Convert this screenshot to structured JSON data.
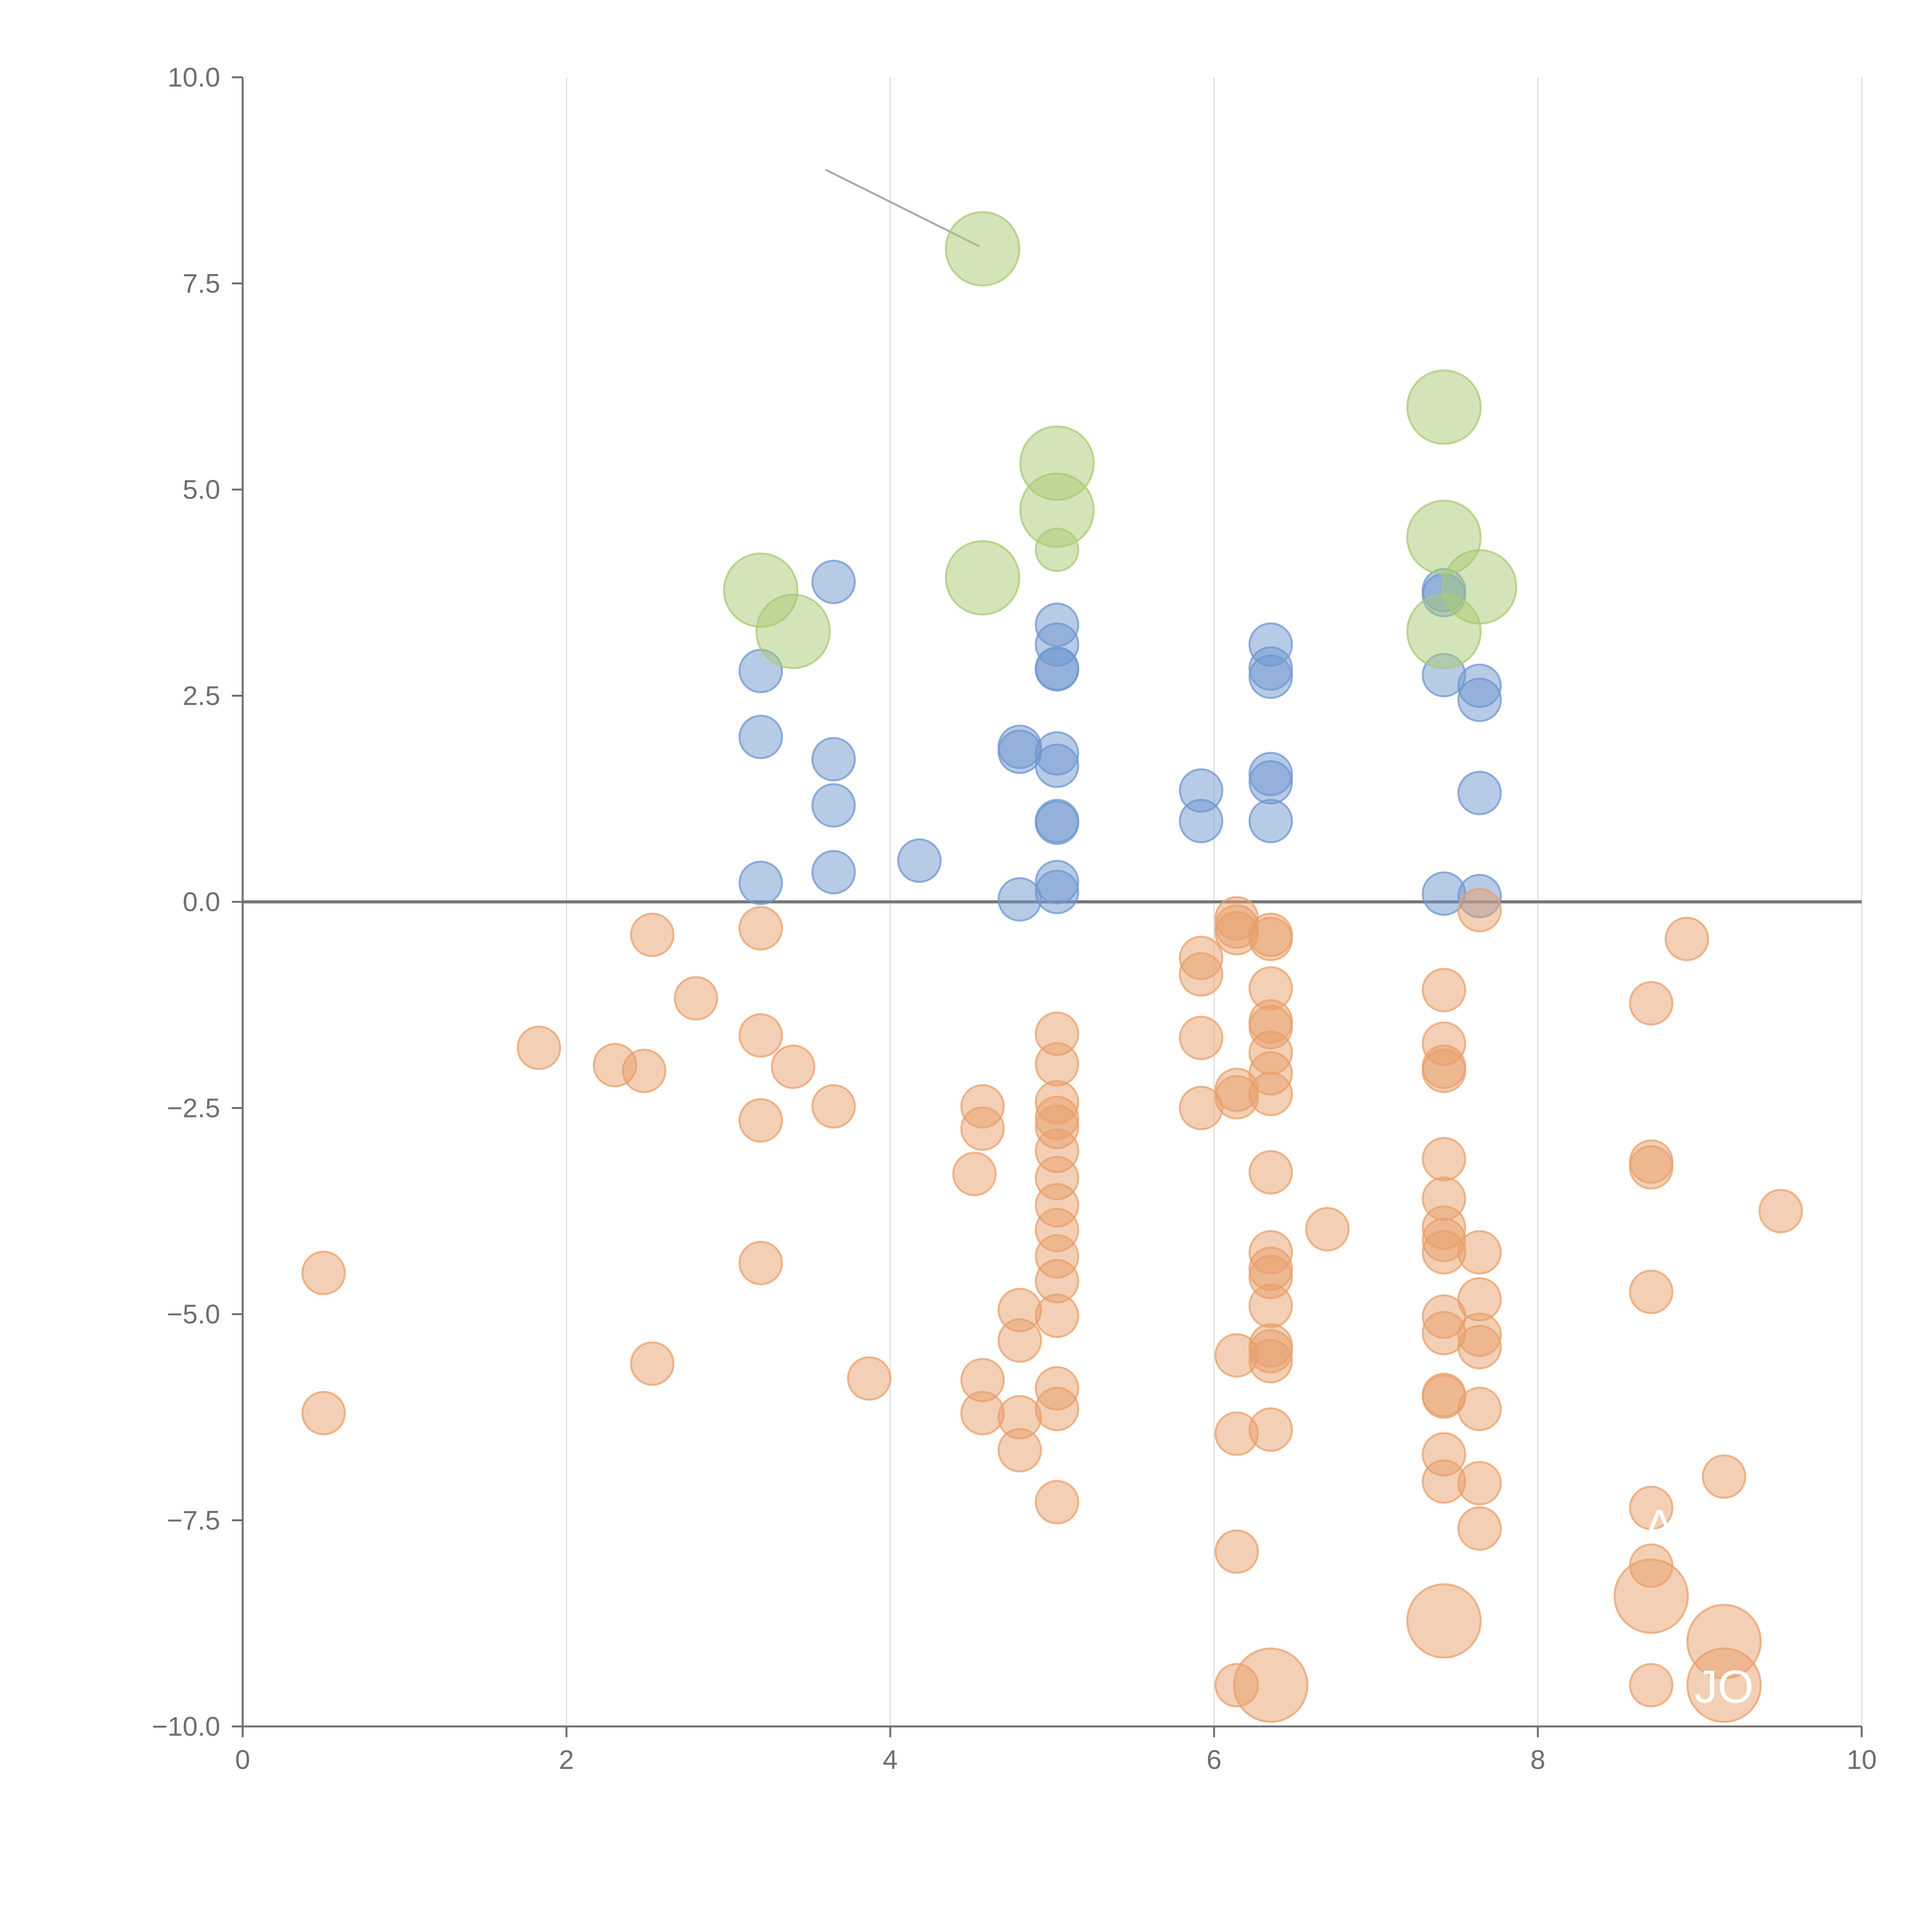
{
  "chart_data": {
    "type": "scatter",
    "title": "",
    "xlabel": "",
    "ylabel": "",
    "xlim": [
      0,
      10
    ],
    "ylim": [
      -10,
      10
    ],
    "x_ticks": [
      0,
      2,
      4,
      6,
      8,
      10
    ],
    "x_tick_labels": [
      "0",
      "2",
      "4",
      "6",
      "8",
      "10"
    ],
    "y_ticks": [
      -10,
      -7.5,
      -5,
      -2.5,
      0,
      2.5,
      5,
      7.5,
      10
    ],
    "y_tick_labels": [
      "−10.0",
      "−7.5",
      "−5.0",
      "−2.5",
      "0.0",
      "2.5",
      "5.0",
      "7.5",
      "10.0"
    ],
    "vertical_grid": true,
    "reference_line_y": 0,
    "colors": {
      "positive": "#6f97cf",
      "negative": "#e8a06b",
      "highlight_positive": "#a9ca74",
      "axis": "#6f6f6f",
      "grid": "#dddddd",
      "reference": "#777777",
      "leader": "#aaaaaa"
    },
    "series": [
      {
        "name": "positive",
        "color": "#6f97cf",
        "points": [
          [
            3.2,
            2.8
          ],
          [
            3.2,
            2.0
          ],
          [
            3.2,
            0.23
          ],
          [
            3.65,
            3.88
          ],
          [
            3.65,
            1.73
          ],
          [
            3.65,
            1.17
          ],
          [
            3.65,
            0.36
          ],
          [
            4.18,
            0.5
          ],
          [
            4.8,
            1.88
          ],
          [
            4.8,
            1.82
          ],
          [
            4.8,
            0.03
          ],
          [
            5.03,
            3.36
          ],
          [
            5.03,
            3.12
          ],
          [
            5.03,
            2.83
          ],
          [
            5.03,
            2.82
          ],
          [
            5.03,
            1.8
          ],
          [
            5.03,
            1.65
          ],
          [
            5.03,
            0.98
          ],
          [
            5.03,
            0.96
          ],
          [
            5.03,
            0.24
          ],
          [
            5.03,
            0.12
          ],
          [
            5.92,
            1.35
          ],
          [
            5.92,
            0.98
          ],
          [
            6.35,
            3.12
          ],
          [
            6.35,
            2.83
          ],
          [
            6.35,
            2.73
          ],
          [
            6.35,
            1.55
          ],
          [
            6.35,
            1.45
          ],
          [
            6.35,
            0.98
          ],
          [
            7.42,
            3.78
          ],
          [
            7.42,
            3.72
          ],
          [
            7.42,
            2.75
          ],
          [
            7.42,
            0.1
          ],
          [
            7.64,
            2.62
          ],
          [
            7.64,
            2.45
          ],
          [
            7.64,
            1.32
          ],
          [
            7.64,
            0.07
          ]
        ]
      },
      {
        "name": "negative",
        "color": "#e8a06b",
        "points": [
          [
            0.5,
            -4.5
          ],
          [
            0.5,
            -6.2
          ],
          [
            1.83,
            -1.77
          ],
          [
            2.3,
            -1.98
          ],
          [
            2.48,
            -2.05
          ],
          [
            2.53,
            -0.4
          ],
          [
            2.53,
            -5.6
          ],
          [
            2.8,
            -1.17
          ],
          [
            3.2,
            -0.32
          ],
          [
            3.2,
            -1.62
          ],
          [
            3.2,
            -2.65
          ],
          [
            3.2,
            -4.38
          ],
          [
            3.4,
            -2.0
          ],
          [
            3.65,
            -2.48
          ],
          [
            3.87,
            -5.78
          ],
          [
            4.52,
            -3.3
          ],
          [
            4.57,
            -2.48
          ],
          [
            4.57,
            -2.75
          ],
          [
            4.57,
            -5.8
          ],
          [
            4.57,
            -6.2
          ],
          [
            4.8,
            -4.95
          ],
          [
            4.8,
            -5.32
          ],
          [
            4.8,
            -6.25
          ],
          [
            4.8,
            -6.65
          ],
          [
            5.03,
            -1.6
          ],
          [
            5.03,
            -1.97
          ],
          [
            5.03,
            -2.43
          ],
          [
            5.03,
            -2.62
          ],
          [
            5.03,
            -2.73
          ],
          [
            5.03,
            -3.02
          ],
          [
            5.03,
            -3.35
          ],
          [
            5.03,
            -3.68
          ],
          [
            5.03,
            -3.98
          ],
          [
            5.03,
            -4.3
          ],
          [
            5.03,
            -4.6
          ],
          [
            5.03,
            -5.02
          ],
          [
            5.03,
            -5.9
          ],
          [
            5.03,
            -6.15
          ],
          [
            5.03,
            -7.28
          ],
          [
            5.92,
            -0.68
          ],
          [
            5.92,
            -0.88
          ],
          [
            5.92,
            -1.65
          ],
          [
            5.92,
            -2.5
          ],
          [
            6.14,
            -0.2
          ],
          [
            6.14,
            -0.3
          ],
          [
            6.14,
            -0.38
          ],
          [
            6.14,
            -2.28
          ],
          [
            6.14,
            -2.37
          ],
          [
            6.14,
            -5.5
          ],
          [
            6.14,
            -6.45
          ],
          [
            6.14,
            -7.88
          ],
          [
            6.14,
            -9.5
          ],
          [
            6.35,
            -0.4
          ],
          [
            6.35,
            -0.45
          ],
          [
            6.35,
            -1.05
          ],
          [
            6.35,
            -1.45
          ],
          [
            6.35,
            -1.52
          ],
          [
            6.35,
            -1.83
          ],
          [
            6.35,
            -2.08
          ],
          [
            6.35,
            -2.33
          ],
          [
            6.35,
            -3.28
          ],
          [
            6.35,
            -4.25
          ],
          [
            6.35,
            -4.45
          ],
          [
            6.35,
            -4.55
          ],
          [
            6.35,
            -4.9
          ],
          [
            6.35,
            -5.38
          ],
          [
            6.35,
            -5.45
          ],
          [
            6.35,
            -5.57
          ],
          [
            6.35,
            -6.4
          ],
          [
            6.7,
            -3.97
          ],
          [
            7.42,
            -1.07
          ],
          [
            7.42,
            -1.72
          ],
          [
            7.42,
            -2.0
          ],
          [
            7.42,
            -2.05
          ],
          [
            7.42,
            -3.12
          ],
          [
            7.42,
            -3.6
          ],
          [
            7.42,
            -3.95
          ],
          [
            7.42,
            -4.1
          ],
          [
            7.42,
            -4.25
          ],
          [
            7.42,
            -5.03
          ],
          [
            7.42,
            -5.23
          ],
          [
            7.42,
            -5.98
          ],
          [
            7.42,
            -6.0
          ],
          [
            7.42,
            -6.7
          ],
          [
            7.42,
            -7.03
          ],
          [
            7.64,
            -0.1
          ],
          [
            7.64,
            -4.25
          ],
          [
            7.64,
            -4.82
          ],
          [
            7.64,
            -5.25
          ],
          [
            7.64,
            -5.4
          ],
          [
            7.64,
            -6.15
          ],
          [
            7.64,
            -7.05
          ],
          [
            7.64,
            -7.6
          ],
          [
            8.7,
            -1.23
          ],
          [
            8.7,
            -3.15
          ],
          [
            8.7,
            -3.22
          ],
          [
            8.7,
            -4.73
          ],
          [
            8.7,
            -7.35
          ],
          [
            8.7,
            -8.05
          ],
          [
            8.7,
            -9.5
          ],
          [
            8.92,
            -0.45
          ],
          [
            9.15,
            -6.97
          ],
          [
            9.5,
            -3.75
          ]
        ]
      },
      {
        "name": "highlight_positive",
        "color": "#a9ca74",
        "points": [
          [
            4.57,
            7.92
          ],
          [
            5.03,
            5.32
          ],
          [
            5.03,
            4.75
          ],
          [
            5.03,
            4.27
          ],
          [
            4.57,
            3.93
          ],
          [
            3.2,
            3.78
          ],
          [
            3.4,
            3.28
          ],
          [
            7.42,
            6.0
          ],
          [
            7.42,
            4.42
          ],
          [
            7.64,
            3.82
          ],
          [
            7.42,
            3.28
          ]
        ],
        "sizes": [
          "large",
          "large",
          "large",
          "small",
          "large",
          "large",
          "large",
          "large",
          "large",
          "large",
          "large"
        ]
      },
      {
        "name": "highlight_negative",
        "color": "#e8a06b",
        "points": [
          [
            7.42,
            -8.72
          ],
          [
            6.35,
            -9.5
          ],
          [
            8.7,
            -8.42
          ],
          [
            9.15,
            -8.97
          ],
          [
            9.15,
            -9.5
          ]
        ],
        "sizes": [
          "large",
          "large",
          "large",
          "large",
          "large"
        ]
      }
    ],
    "annotations": [
      {
        "text": "JO",
        "x": 9.15,
        "y": -9.5
      },
      {
        "text": "A",
        "x": 8.75,
        "y": -7.55
      }
    ]
  }
}
